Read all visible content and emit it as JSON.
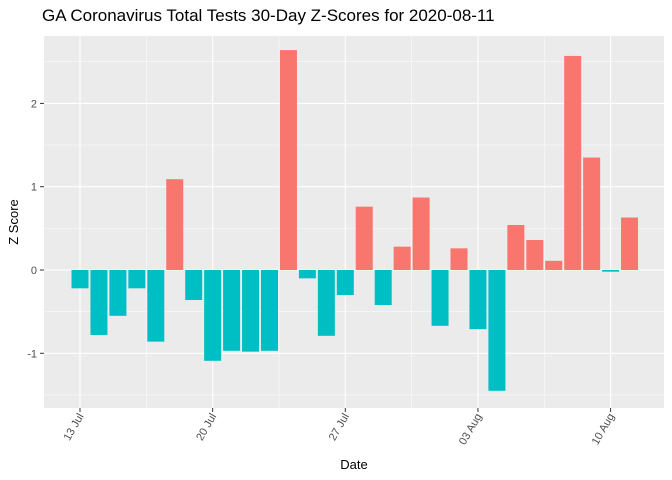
{
  "chart_data": {
    "type": "bar",
    "title": "GA Coronavirus Total Tests 30-Day Z-Scores for 2020-08-11",
    "xlabel": "Date",
    "ylabel": "Z Score",
    "ylim": [
      -1.6,
      2.8
    ],
    "yticks": [
      -1,
      0,
      1,
      2
    ],
    "xticks": [
      {
        "label": "13 Jul",
        "day": 0
      },
      {
        "label": "20 Jul",
        "day": 7
      },
      {
        "label": "27 Jul",
        "day": 14
      },
      {
        "label": "03 Aug",
        "day": 21
      },
      {
        "label": "10 Aug",
        "day": 28
      }
    ],
    "categories": [
      "2020-07-13",
      "2020-07-14",
      "2020-07-15",
      "2020-07-16",
      "2020-07-17",
      "2020-07-18",
      "2020-07-19",
      "2020-07-20",
      "2020-07-21",
      "2020-07-22",
      "2020-07-23",
      "2020-07-24",
      "2020-07-25",
      "2020-07-26",
      "2020-07-27",
      "2020-07-28",
      "2020-07-29",
      "2020-07-30",
      "2020-07-31",
      "2020-08-01",
      "2020-08-02",
      "2020-08-03",
      "2020-08-04",
      "2020-08-05",
      "2020-08-06",
      "2020-08-07",
      "2020-08-08",
      "2020-08-09",
      "2020-08-10",
      "2020-08-11"
    ],
    "values": [
      -0.22,
      -0.78,
      -0.55,
      -0.22,
      -0.86,
      1.09,
      -0.36,
      -1.09,
      -0.97,
      -0.98,
      -0.97,
      2.64,
      -0.1,
      -0.79,
      -0.3,
      0.76,
      -0.42,
      0.28,
      0.87,
      -0.67,
      0.26,
      -0.71,
      -1.45,
      0.54,
      0.36,
      0.11,
      2.57,
      1.35,
      -0.02,
      0.63
    ],
    "colors": {
      "positive": "#F8766D",
      "negative": "#00BFC4"
    },
    "panel_background": "#EBEBEB",
    "grid": true,
    "legend": "none"
  }
}
